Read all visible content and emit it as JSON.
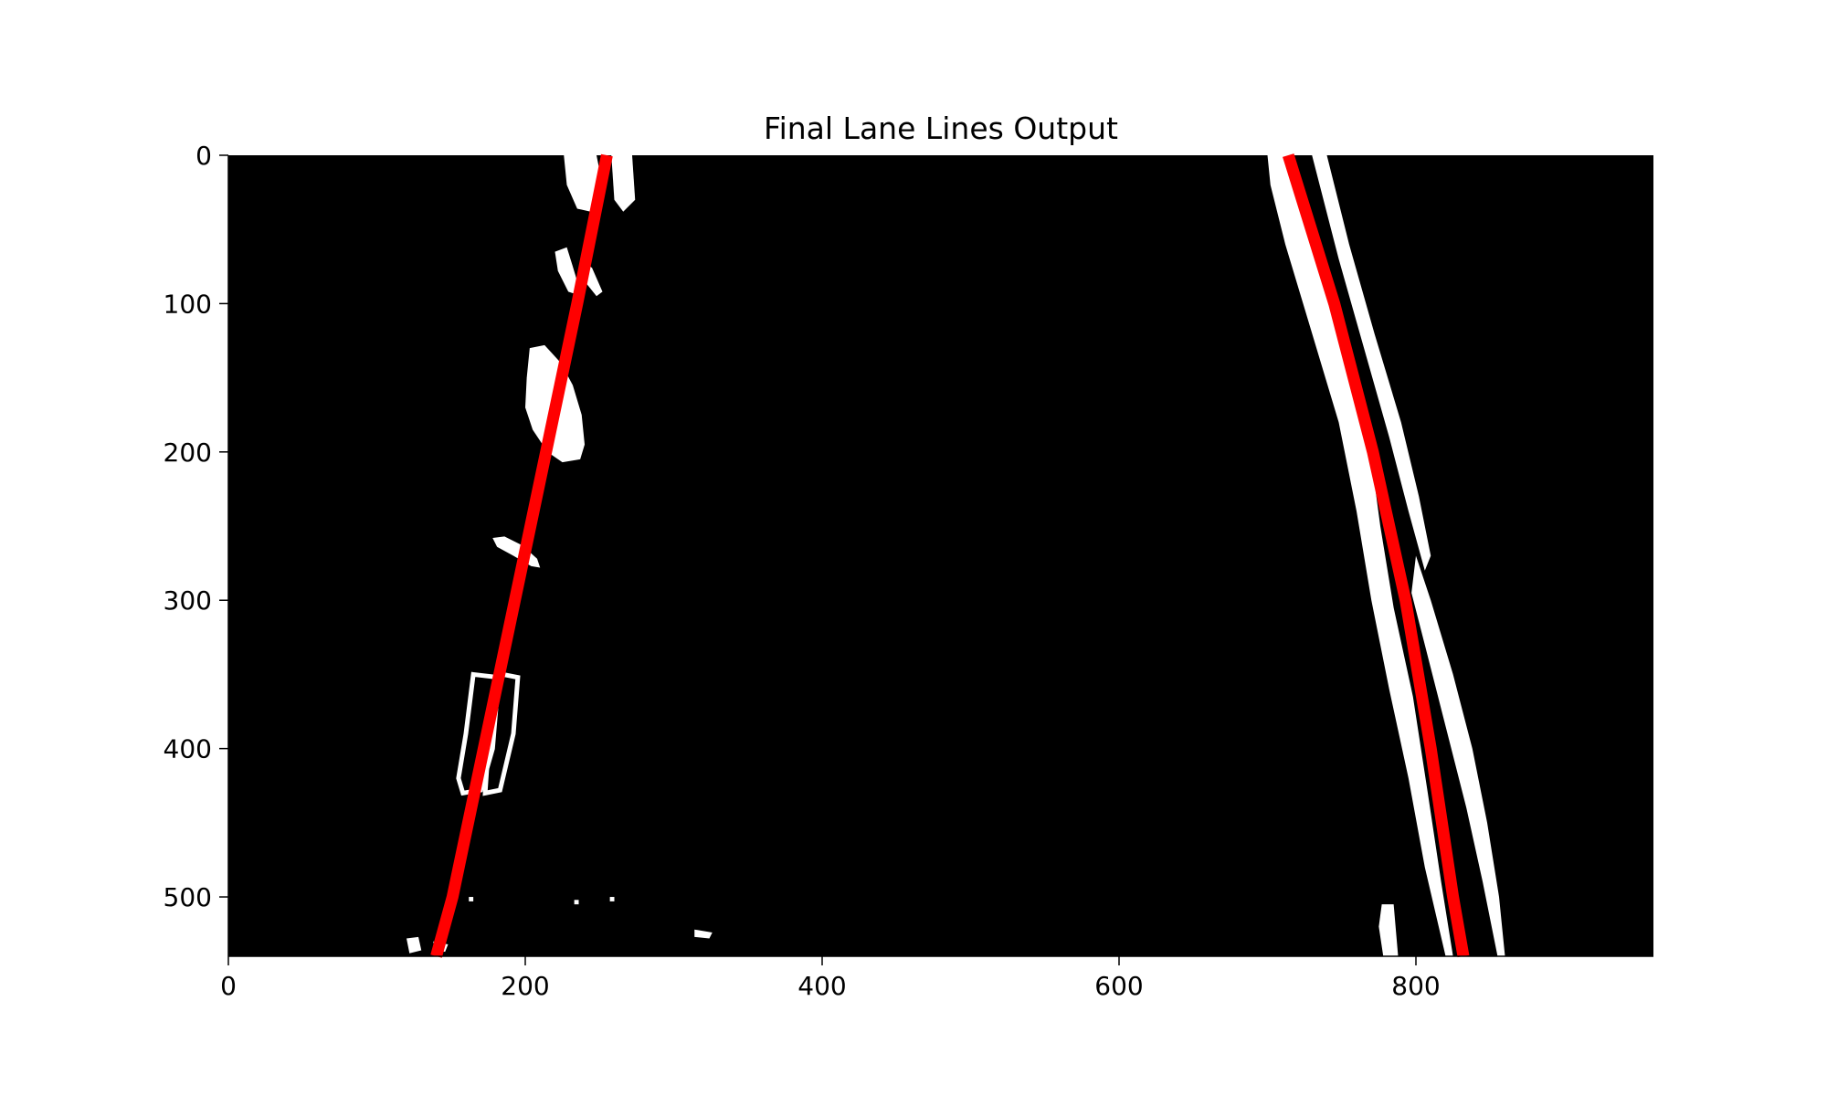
{
  "chart_data": {
    "type": "image",
    "title": "Final Lane Lines Output",
    "xlabel": "",
    "ylabel": "",
    "xlim": [
      0,
      960
    ],
    "ylim": [
      540,
      0
    ],
    "x_ticks": [
      0,
      200,
      400,
      600,
      800
    ],
    "y_ticks": [
      0,
      100,
      200,
      300,
      400,
      500
    ],
    "grid": false,
    "legend": "none",
    "colors": {
      "background": "#000000",
      "lane_pixels": "#ffffff",
      "fit_line": "#ff0000"
    },
    "fitted_lines": [
      {
        "points": [
          [
            255,
            0
          ],
          [
            235,
            100
          ],
          [
            214,
            200
          ],
          [
            193,
            300
          ],
          [
            172,
            400
          ],
          [
            151,
            500
          ],
          [
            140,
            540
          ]
        ]
      },
      {
        "points": [
          [
            714,
            0
          ],
          [
            745,
            100
          ],
          [
            771,
            200
          ],
          [
            793,
            300
          ],
          [
            810,
            400
          ],
          [
            825,
            500
          ],
          [
            832,
            540
          ]
        ]
      }
    ],
    "binary_blobs": [
      {
        "shape": "poly",
        "points": [
          [
            226,
            0
          ],
          [
            248,
            0
          ],
          [
            252,
            20
          ],
          [
            244,
            38
          ],
          [
            235,
            36
          ],
          [
            228,
            20
          ]
        ]
      },
      {
        "shape": "poly",
        "points": [
          [
            258,
            0
          ],
          [
            272,
            0
          ],
          [
            274,
            30
          ],
          [
            266,
            38
          ],
          [
            260,
            30
          ]
        ]
      },
      {
        "shape": "poly",
        "points": [
          [
            220,
            65
          ],
          [
            228,
            62
          ],
          [
            232,
            75
          ],
          [
            238,
            95
          ],
          [
            229,
            92
          ],
          [
            222,
            78
          ]
        ]
      },
      {
        "shape": "poly",
        "points": [
          [
            238,
            70
          ],
          [
            245,
            76
          ],
          [
            252,
            92
          ],
          [
            248,
            95
          ],
          [
            240,
            85
          ]
        ]
      },
      {
        "shape": "poly",
        "points": [
          [
            203,
            130
          ],
          [
            213,
            128
          ],
          [
            224,
            140
          ],
          [
            232,
            155
          ],
          [
            238,
            175
          ],
          [
            240,
            195
          ],
          [
            237,
            205
          ],
          [
            225,
            207
          ],
          [
            215,
            200
          ],
          [
            205,
            185
          ],
          [
            200,
            170
          ],
          [
            201,
            150
          ]
        ]
      },
      {
        "shape": "poly",
        "points": [
          [
            178,
            258
          ],
          [
            186,
            257
          ],
          [
            198,
            263
          ],
          [
            208,
            272
          ],
          [
            210,
            278
          ],
          [
            204,
            277
          ],
          [
            192,
            270
          ],
          [
            181,
            264
          ]
        ]
      },
      {
        "shape": "ring",
        "points": [
          [
            165,
            350
          ],
          [
            182,
            352
          ],
          [
            178,
            400
          ],
          [
            170,
            428
          ],
          [
            158,
            430
          ],
          [
            155,
            420
          ],
          [
            160,
            390
          ]
        ]
      },
      {
        "shape": "ring",
        "points": [
          [
            185,
            350
          ],
          [
            195,
            352
          ],
          [
            192,
            390
          ],
          [
            183,
            428
          ],
          [
            173,
            430
          ],
          [
            175,
            400
          ],
          [
            180,
            370
          ]
        ]
      },
      {
        "shape": "poly",
        "points": [
          [
            700,
            0
          ],
          [
            714,
            0
          ],
          [
            735,
            60
          ],
          [
            755,
            130
          ],
          [
            768,
            190
          ],
          [
            776,
            250
          ],
          [
            785,
            305
          ],
          [
            798,
            365
          ],
          [
            808,
            430
          ],
          [
            817,
            490
          ],
          [
            825,
            540
          ],
          [
            820,
            540
          ],
          [
            806,
            480
          ],
          [
            795,
            420
          ],
          [
            782,
            360
          ],
          [
            770,
            300
          ],
          [
            760,
            240
          ],
          [
            748,
            180
          ],
          [
            730,
            120
          ],
          [
            712,
            60
          ],
          [
            702,
            20
          ]
        ]
      },
      {
        "shape": "poly",
        "points": [
          [
            740,
            0
          ],
          [
            755,
            60
          ],
          [
            772,
            120
          ],
          [
            790,
            180
          ],
          [
            802,
            230
          ],
          [
            810,
            270
          ],
          [
            806,
            280
          ],
          [
            795,
            240
          ],
          [
            782,
            190
          ],
          [
            765,
            130
          ],
          [
            748,
            70
          ],
          [
            730,
            0
          ]
        ]
      },
      {
        "shape": "poly",
        "points": [
          [
            800,
            270
          ],
          [
            810,
            300
          ],
          [
            825,
            350
          ],
          [
            838,
            400
          ],
          [
            848,
            450
          ],
          [
            856,
            500
          ],
          [
            860,
            540
          ],
          [
            855,
            540
          ],
          [
            845,
            490
          ],
          [
            834,
            440
          ],
          [
            820,
            385
          ],
          [
            806,
            330
          ],
          [
            797,
            295
          ]
        ]
      },
      {
        "shape": "poly",
        "points": [
          [
            777,
            505
          ],
          [
            785,
            505
          ],
          [
            788,
            540
          ],
          [
            778,
            540
          ],
          [
            775,
            520
          ]
        ]
      },
      {
        "shape": "poly",
        "points": [
          [
            120,
            528
          ],
          [
            128,
            527
          ],
          [
            130,
            536
          ],
          [
            122,
            538
          ]
        ]
      },
      {
        "shape": "poly",
        "points": [
          [
            138,
            530
          ],
          [
            148,
            532
          ],
          [
            146,
            537
          ],
          [
            139,
            536
          ]
        ]
      },
      {
        "shape": "poly",
        "points": [
          [
            314,
            522
          ],
          [
            326,
            524
          ],
          [
            324,
            528
          ],
          [
            314,
            527
          ]
        ]
      },
      {
        "shape": "poly",
        "points": [
          [
            162,
            500
          ],
          [
            165,
            500
          ],
          [
            165,
            503
          ],
          [
            162,
            503
          ]
        ]
      },
      {
        "shape": "poly",
        "points": [
          [
            233,
            502
          ],
          [
            236,
            502
          ],
          [
            236,
            505
          ],
          [
            233,
            505
          ]
        ]
      },
      {
        "shape": "poly",
        "points": [
          [
            257,
            500
          ],
          [
            260,
            500
          ],
          [
            260,
            503
          ],
          [
            257,
            503
          ]
        ]
      }
    ]
  }
}
